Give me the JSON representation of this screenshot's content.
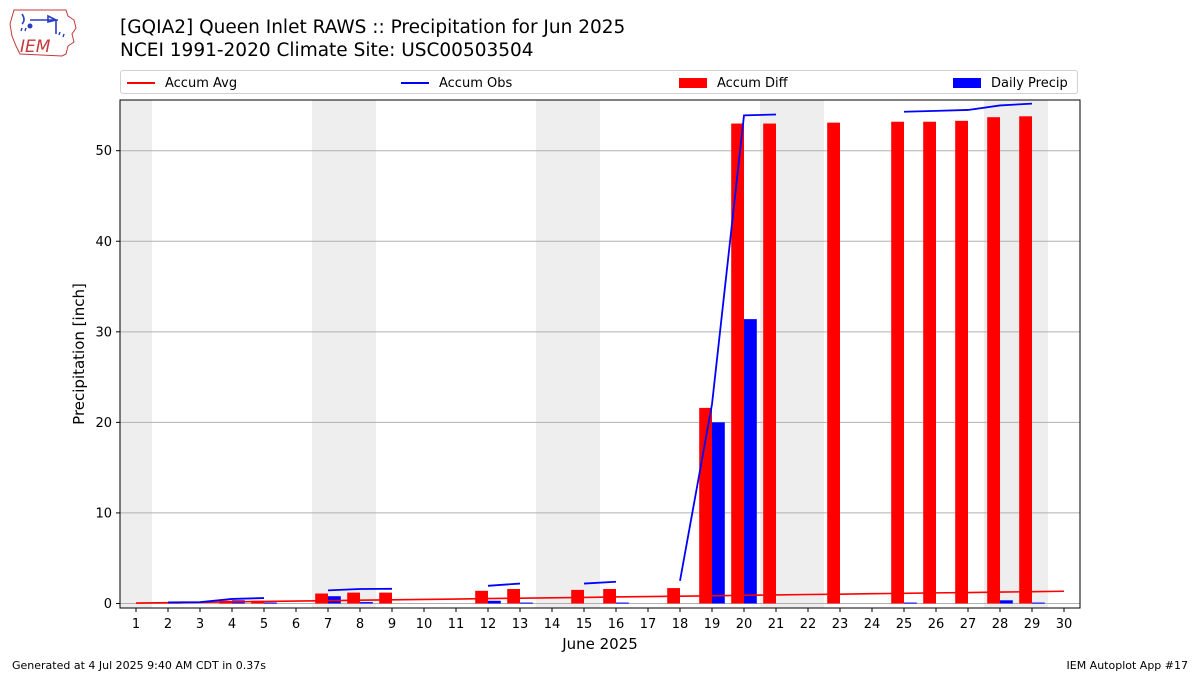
{
  "header": {
    "title": "[GQIA2] Queen Inlet RAWS :: Precipitation for Jun 2025",
    "subtitle": "NCEI 1991-2020 Climate Site: USC00503504"
  },
  "logo": {
    "text": "IEM"
  },
  "footer": {
    "left": "Generated at 4 Jul 2025 9:40 AM CDT in 0.37s",
    "right": "IEM Autoplot App #17"
  },
  "colors": {
    "accum_avg": "#ff0000",
    "accum_obs": "#0000ff",
    "accum_diff": "#ff0000",
    "daily_precip": "#0000ff",
    "weekend_shade": "#eeeeee",
    "grid": "#b0b0b0"
  },
  "legend": [
    {
      "label": "Accum Avg",
      "kind": "line",
      "color": "#ff0000"
    },
    {
      "label": "Accum Obs",
      "kind": "line",
      "color": "#0000ff"
    },
    {
      "label": "Accum Diff",
      "kind": "box",
      "color": "#ff0000"
    },
    {
      "label": "Daily Precip",
      "kind": "box",
      "color": "#0000ff"
    }
  ],
  "chart_data": {
    "type": "bar",
    "xlabel": "June 2025",
    "ylabel": "Precipitation [inch]",
    "xlim": [
      0.5,
      30.5
    ],
    "ylim": [
      -0.5,
      55.6
    ],
    "yticks": [
      0,
      10,
      20,
      30,
      40,
      50
    ],
    "days": [
      1,
      2,
      3,
      4,
      5,
      6,
      7,
      8,
      9,
      10,
      11,
      12,
      13,
      14,
      15,
      16,
      17,
      18,
      19,
      20,
      21,
      22,
      23,
      24,
      25,
      26,
      27,
      28,
      29,
      30
    ],
    "grid": "horizontal",
    "legend_position": "top",
    "shaded_ranges": [
      [
        0.5,
        1.5
      ],
      [
        6.5,
        8.5
      ],
      [
        13.5,
        15.5
      ],
      [
        20.5,
        22.5
      ],
      [
        27.5,
        29.5
      ]
    ],
    "accum_avg": [
      0.04,
      0.09,
      0.13,
      0.18,
      0.22,
      0.27,
      0.31,
      0.36,
      0.4,
      0.45,
      0.49,
      0.54,
      0.58,
      0.63,
      0.67,
      0.72,
      0.76,
      0.81,
      0.85,
      0.9,
      0.94,
      0.99,
      1.03,
      1.08,
      1.12,
      1.17,
      1.21,
      1.26,
      1.3,
      1.35
    ],
    "accum_obs_segments": [
      [
        [
          2,
          0.12
        ],
        [
          3,
          0.15
        ],
        [
          4,
          0.5
        ],
        [
          5,
          0.6
        ]
      ],
      [
        [
          7,
          1.45
        ],
        [
          8,
          1.6
        ],
        [
          9,
          1.62
        ]
      ],
      [
        [
          12,
          1.95
        ],
        [
          13,
          2.2
        ]
      ],
      [
        [
          15,
          2.2
        ],
        [
          16,
          2.4
        ]
      ],
      [
        [
          18,
          2.5
        ],
        [
          19,
          22.0
        ],
        [
          20,
          53.9
        ],
        [
          21,
          54.0
        ]
      ],
      [
        [
          25,
          54.3
        ],
        [
          26,
          54.4
        ],
        [
          27,
          54.5
        ],
        [
          28,
          55.0
        ],
        [
          29,
          55.2
        ]
      ]
    ],
    "accum_diff": [
      {
        "day": 4,
        "value": 0.3
      },
      {
        "day": 5,
        "value": 0.3
      },
      {
        "day": 7,
        "value": 1.1
      },
      {
        "day": 8,
        "value": 1.2
      },
      {
        "day": 9,
        "value": 1.2
      },
      {
        "day": 12,
        "value": 1.4
      },
      {
        "day": 13,
        "value": 1.6
      },
      {
        "day": 15,
        "value": 1.5
      },
      {
        "day": 16,
        "value": 1.6
      },
      {
        "day": 18,
        "value": 1.7
      },
      {
        "day": 19,
        "value": 21.6
      },
      {
        "day": 20,
        "value": 53.0
      },
      {
        "day": 21,
        "value": 53.0
      },
      {
        "day": 23,
        "value": 53.1
      },
      {
        "day": 25,
        "value": 53.2
      },
      {
        "day": 26,
        "value": 53.2
      },
      {
        "day": 27,
        "value": 53.3
      },
      {
        "day": 28,
        "value": 53.7
      },
      {
        "day": 29,
        "value": 53.8
      }
    ],
    "daily_precip": [
      {
        "day": 2,
        "value": 0.1
      },
      {
        "day": 4,
        "value": 0.35
      },
      {
        "day": 5,
        "value": 0.1
      },
      {
        "day": 7,
        "value": 0.8
      },
      {
        "day": 8,
        "value": 0.15
      },
      {
        "day": 12,
        "value": 0.3
      },
      {
        "day": 13,
        "value": 0.1
      },
      {
        "day": 16,
        "value": 0.1
      },
      {
        "day": 19,
        "value": 20.0
      },
      {
        "day": 20,
        "value": 31.4
      },
      {
        "day": 25,
        "value": 0.1
      },
      {
        "day": 28,
        "value": 0.35
      },
      {
        "day": 29,
        "value": 0.1
      }
    ]
  }
}
